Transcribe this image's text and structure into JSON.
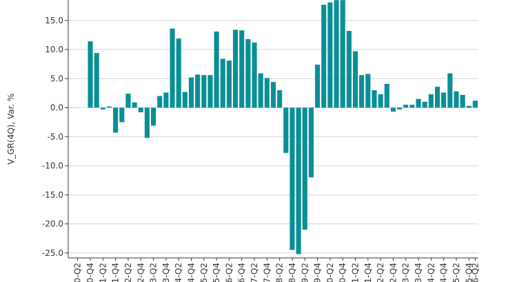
{
  "chart_data": {
    "type": "bar",
    "title": "",
    "xlabel": "",
    "ylabel": "V_GR(4Q), Var. %",
    "ylim": [
      -25,
      18.5
    ],
    "yticks": [
      15.0,
      10.0,
      5.0,
      0.0,
      -5.0,
      -10.0,
      -15.0,
      -20.0,
      -25.0
    ],
    "ytick_labels": [
      "15.0",
      "10.0",
      "5.0",
      "0.0",
      "-5.0",
      "-10.0",
      "-15.0",
      "-20.0",
      "-25.0"
    ],
    "grid": true,
    "bar_color": "#0a8f96",
    "xtick_labels": [
      "0-Q2",
      "0-Q4",
      "1-Q2",
      "1-Q4",
      "2-Q2",
      "2-Q4",
      "3-Q2",
      "3-Q4",
      "4-Q2",
      "4-Q4",
      "5-Q2",
      "5-Q4",
      "6-Q2",
      "6-Q4",
      "7-Q2",
      "7-Q4",
      "8-Q2",
      "8-Q4",
      "9-Q2",
      "9-Q4",
      "0-Q2",
      "0-Q4",
      "1-Q2",
      "1-Q4",
      "2-Q2",
      "2-Q4",
      "3-Q2",
      "3-Q4",
      "4-Q2",
      "4-Q4",
      "5-Q2",
      "5-Q4",
      "6-Q2"
    ],
    "values": [
      0,
      0,
      0,
      11.4,
      9.4,
      -0.3,
      0.2,
      -4.3,
      -2.5,
      2.4,
      0.9,
      -0.8,
      -5.2,
      -3.1,
      2.0,
      2.6,
      13.6,
      11.9,
      2.7,
      5.2,
      5.7,
      5.6,
      5.6,
      13.1,
      8.4,
      8.1,
      13.4,
      13.3,
      11.8,
      11.2,
      5.9,
      5.1,
      4.4,
      3.0,
      -7.8,
      -24.5,
      -25.2,
      -21.0,
      -12.0,
      7.4,
      17.7,
      18.1,
      18.5,
      18.5,
      13.2,
      9.7,
      5.6,
      5.8,
      3.0,
      2.3,
      4.1,
      -0.7,
      -0.3,
      0.5,
      0.5,
      1.5,
      1.0,
      2.3,
      3.6,
      2.6,
      5.9,
      2.8,
      2.2,
      0.3,
      1.2
    ]
  }
}
